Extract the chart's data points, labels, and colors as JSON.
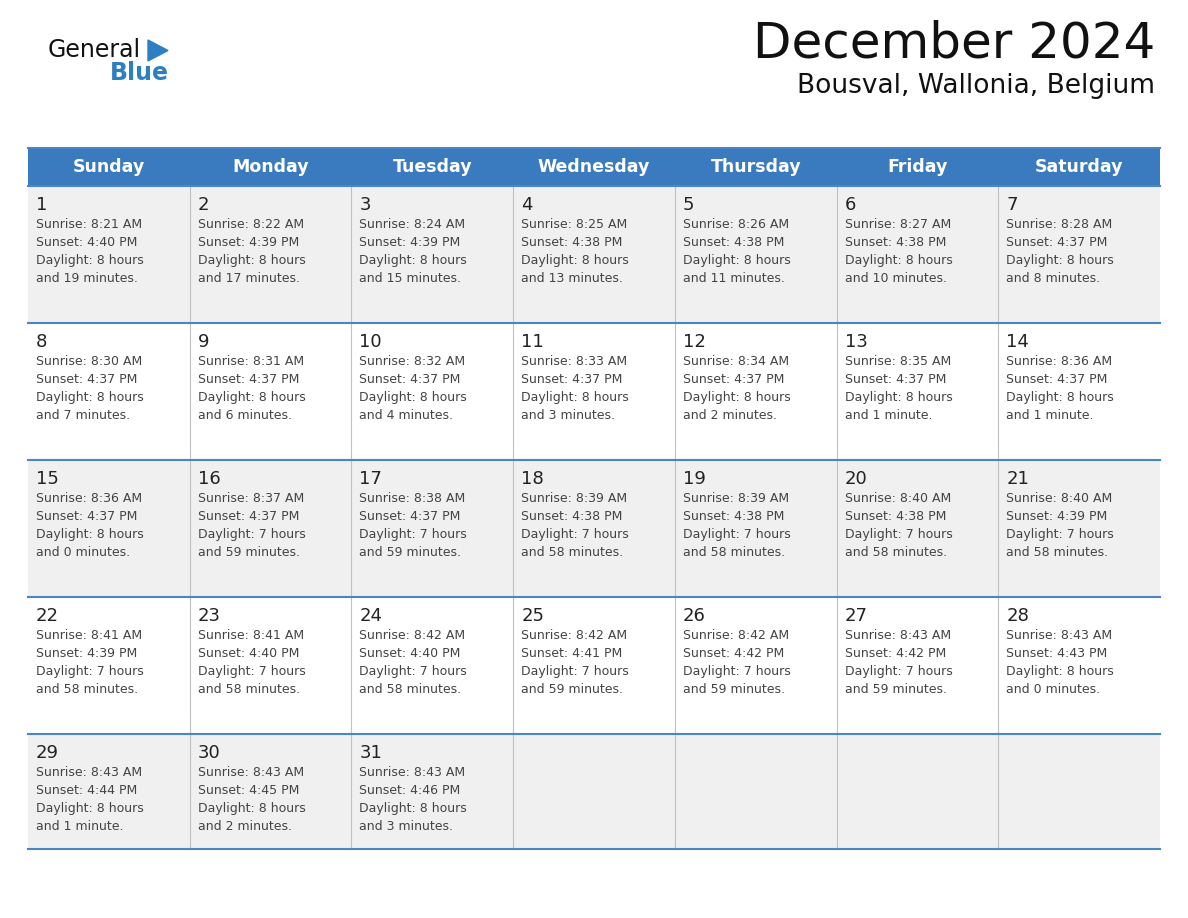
{
  "title": "December 2024",
  "subtitle": "Bousval, Wallonia, Belgium",
  "days_of_week": [
    "Sunday",
    "Monday",
    "Tuesday",
    "Wednesday",
    "Thursday",
    "Friday",
    "Saturday"
  ],
  "header_bg": "#3a7abf",
  "header_text": "#FFFFFF",
  "row_bg_light": "#f0f0f0",
  "row_bg_white": "#ffffff",
  "cell_border_color": "#4a86c0",
  "day_number_color": "#222222",
  "cell_text_color": "#444444",
  "title_color": "#111111",
  "logo_general_color": "#111111",
  "logo_blue_color": "#2e7fc1",
  "calendar_data": [
    [
      {
        "day": 1,
        "sunrise": "8:21 AM",
        "sunset": "4:40 PM",
        "daylight": "8 hours\nand 19 minutes."
      },
      {
        "day": 2,
        "sunrise": "8:22 AM",
        "sunset": "4:39 PM",
        "daylight": "8 hours\nand 17 minutes."
      },
      {
        "day": 3,
        "sunrise": "8:24 AM",
        "sunset": "4:39 PM",
        "daylight": "8 hours\nand 15 minutes."
      },
      {
        "day": 4,
        "sunrise": "8:25 AM",
        "sunset": "4:38 PM",
        "daylight": "8 hours\nand 13 minutes."
      },
      {
        "day": 5,
        "sunrise": "8:26 AM",
        "sunset": "4:38 PM",
        "daylight": "8 hours\nand 11 minutes."
      },
      {
        "day": 6,
        "sunrise": "8:27 AM",
        "sunset": "4:38 PM",
        "daylight": "8 hours\nand 10 minutes."
      },
      {
        "day": 7,
        "sunrise": "8:28 AM",
        "sunset": "4:37 PM",
        "daylight": "8 hours\nand 8 minutes."
      }
    ],
    [
      {
        "day": 8,
        "sunrise": "8:30 AM",
        "sunset": "4:37 PM",
        "daylight": "8 hours\nand 7 minutes."
      },
      {
        "day": 9,
        "sunrise": "8:31 AM",
        "sunset": "4:37 PM",
        "daylight": "8 hours\nand 6 minutes."
      },
      {
        "day": 10,
        "sunrise": "8:32 AM",
        "sunset": "4:37 PM",
        "daylight": "8 hours\nand 4 minutes."
      },
      {
        "day": 11,
        "sunrise": "8:33 AM",
        "sunset": "4:37 PM",
        "daylight": "8 hours\nand 3 minutes."
      },
      {
        "day": 12,
        "sunrise": "8:34 AM",
        "sunset": "4:37 PM",
        "daylight": "8 hours\nand 2 minutes."
      },
      {
        "day": 13,
        "sunrise": "8:35 AM",
        "sunset": "4:37 PM",
        "daylight": "8 hours\nand 1 minute."
      },
      {
        "day": 14,
        "sunrise": "8:36 AM",
        "sunset": "4:37 PM",
        "daylight": "8 hours\nand 1 minute."
      }
    ],
    [
      {
        "day": 15,
        "sunrise": "8:36 AM",
        "sunset": "4:37 PM",
        "daylight": "8 hours\nand 0 minutes."
      },
      {
        "day": 16,
        "sunrise": "8:37 AM",
        "sunset": "4:37 PM",
        "daylight": "7 hours\nand 59 minutes."
      },
      {
        "day": 17,
        "sunrise": "8:38 AM",
        "sunset": "4:37 PM",
        "daylight": "7 hours\nand 59 minutes."
      },
      {
        "day": 18,
        "sunrise": "8:39 AM",
        "sunset": "4:38 PM",
        "daylight": "7 hours\nand 58 minutes."
      },
      {
        "day": 19,
        "sunrise": "8:39 AM",
        "sunset": "4:38 PM",
        "daylight": "7 hours\nand 58 minutes."
      },
      {
        "day": 20,
        "sunrise": "8:40 AM",
        "sunset": "4:38 PM",
        "daylight": "7 hours\nand 58 minutes."
      },
      {
        "day": 21,
        "sunrise": "8:40 AM",
        "sunset": "4:39 PM",
        "daylight": "7 hours\nand 58 minutes."
      }
    ],
    [
      {
        "day": 22,
        "sunrise": "8:41 AM",
        "sunset": "4:39 PM",
        "daylight": "7 hours\nand 58 minutes."
      },
      {
        "day": 23,
        "sunrise": "8:41 AM",
        "sunset": "4:40 PM",
        "daylight": "7 hours\nand 58 minutes."
      },
      {
        "day": 24,
        "sunrise": "8:42 AM",
        "sunset": "4:40 PM",
        "daylight": "7 hours\nand 58 minutes."
      },
      {
        "day": 25,
        "sunrise": "8:42 AM",
        "sunset": "4:41 PM",
        "daylight": "7 hours\nand 59 minutes."
      },
      {
        "day": 26,
        "sunrise": "8:42 AM",
        "sunset": "4:42 PM",
        "daylight": "7 hours\nand 59 minutes."
      },
      {
        "day": 27,
        "sunrise": "8:43 AM",
        "sunset": "4:42 PM",
        "daylight": "7 hours\nand 59 minutes."
      },
      {
        "day": 28,
        "sunrise": "8:43 AM",
        "sunset": "4:43 PM",
        "daylight": "8 hours\nand 0 minutes."
      }
    ],
    [
      {
        "day": 29,
        "sunrise": "8:43 AM",
        "sunset": "4:44 PM",
        "daylight": "8 hours\nand 1 minute."
      },
      {
        "day": 30,
        "sunrise": "8:43 AM",
        "sunset": "4:45 PM",
        "daylight": "8 hours\nand 2 minutes."
      },
      {
        "day": 31,
        "sunrise": "8:43 AM",
        "sunset": "4:46 PM",
        "daylight": "8 hours\nand 3 minutes."
      },
      null,
      null,
      null,
      null
    ]
  ]
}
